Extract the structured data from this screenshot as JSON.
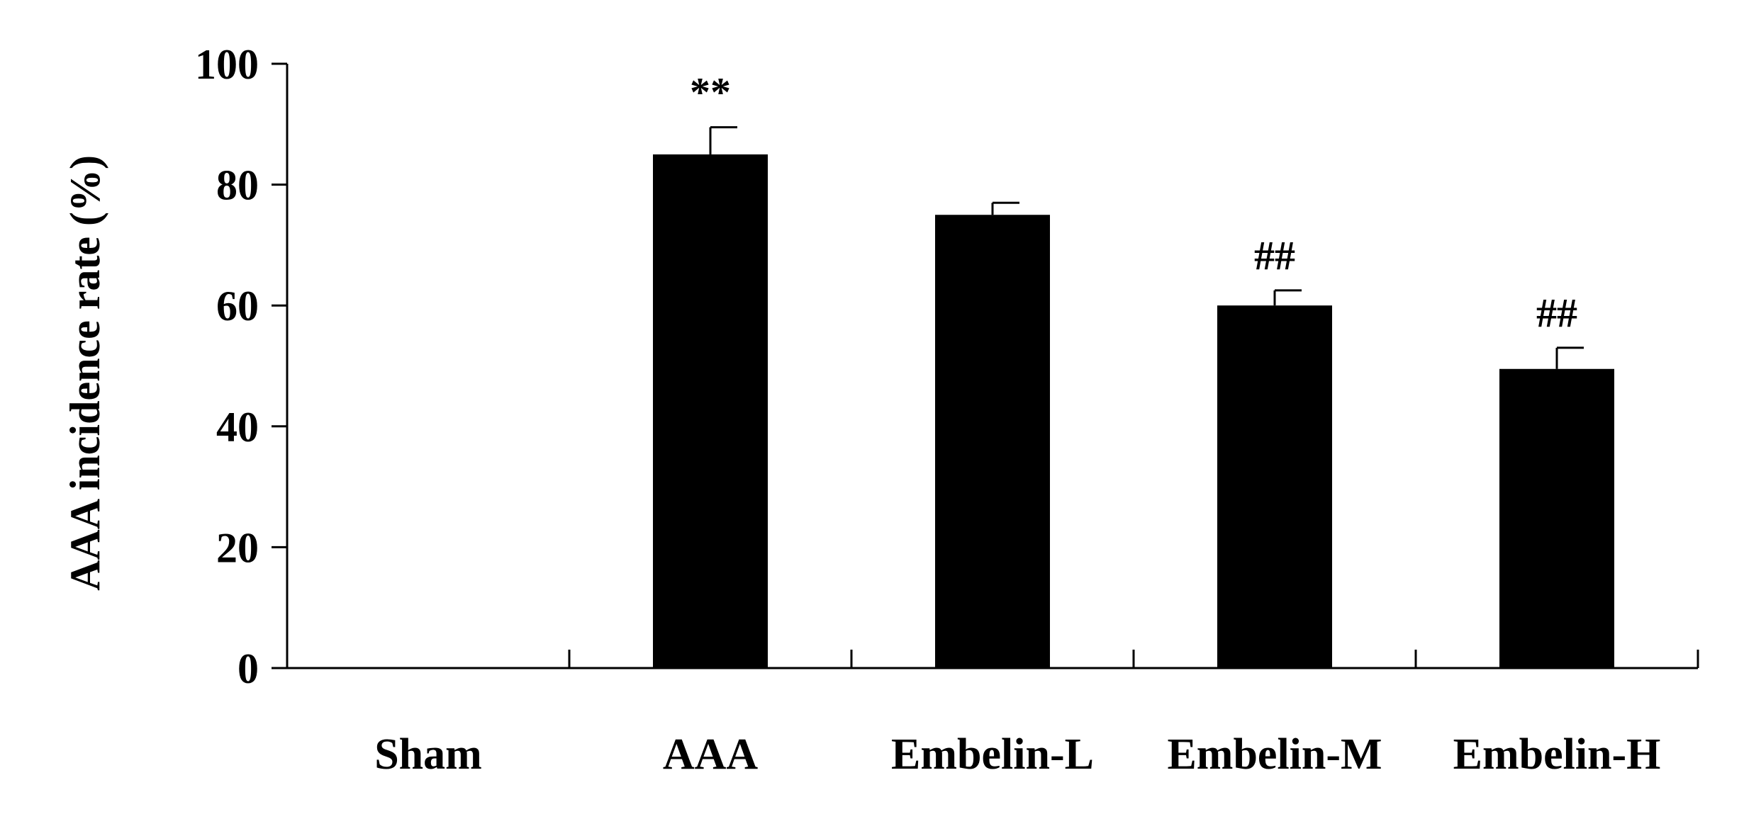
{
  "chart_data": {
    "type": "bar",
    "title": "",
    "xlabel": "",
    "ylabel": "AAA incidence rate (%)",
    "categories": [
      "Sham",
      "AAA",
      "Embelin-L",
      "Embelin-M",
      "Embelin-H"
    ],
    "values": [
      0,
      85,
      75,
      60,
      49.5
    ],
    "errors": [
      0,
      4.5,
      2,
      2.5,
      3.5
    ],
    "annotations": [
      "",
      "**",
      "",
      "##",
      "##"
    ],
    "ylim": [
      0,
      100
    ],
    "yticks": [
      "0",
      "20",
      "40",
      "60",
      "80",
      "100"
    ],
    "grid": false,
    "bar_color": "#000000"
  }
}
